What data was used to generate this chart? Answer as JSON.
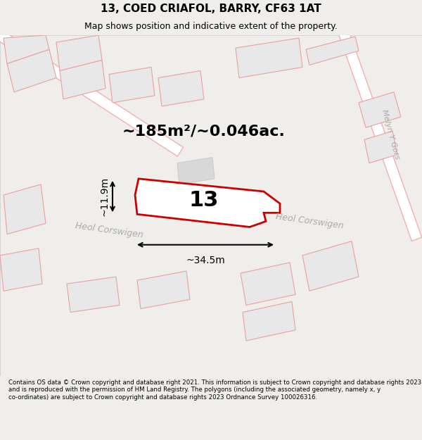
{
  "title": "13, COED CRIAFOL, BARRY, CF63 1AT",
  "subtitle": "Map shows position and indicative extent of the property.",
  "footer": "Contains OS data © Crown copyright and database right 2021. This information is subject to Crown copyright and database rights 2023 and is reproduced with the permission of HM Land Registry. The polygons (including the associated geometry, namely x, y co-ordinates) are subject to Crown copyright and database rights 2023 Ordnance Survey 100026316.",
  "area_label": "~185m²/~0.046ac.",
  "width_label": "~34.5m",
  "height_label": "~11.9m",
  "number_label": "13",
  "road_label_left": "Heol Corswigen",
  "road_label_right": "Heol Corswigen",
  "side_road_label": "Melyn Y Gors",
  "bg_color": "#f0eeeb",
  "map_bg": "#f0eeeb",
  "plot_fill": "#ffffff",
  "plot_stroke": "#cc0000",
  "building_fill": "#d8d8d8",
  "road_color": "#ffffff",
  "road_stroke": "#ddbbbb",
  "grid_color": "#e8e0e0"
}
